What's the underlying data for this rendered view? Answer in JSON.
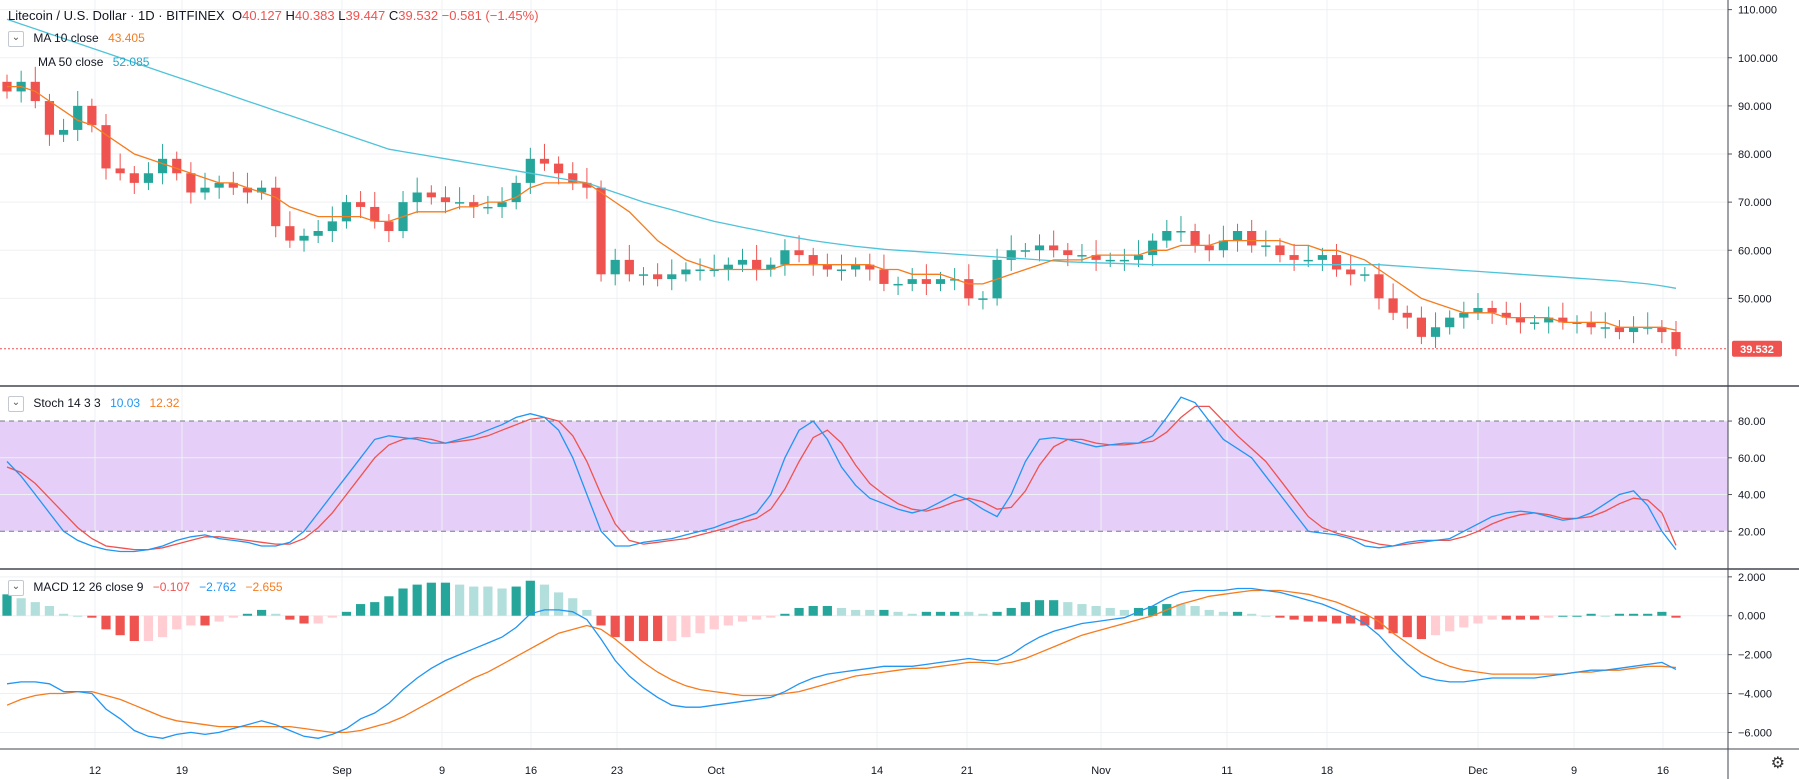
{
  "header": {
    "symbol": "Litecoin / U.S. Dollar · 1D · BITFINEX",
    "open_label": "O",
    "open": "40.127",
    "high_label": "H",
    "high": "40.383",
    "low_label": "L",
    "low": "39.447",
    "close_label": "C",
    "close": "39.532",
    "change": "−0.581 (−1.45%)"
  },
  "indicators": {
    "ma10": {
      "label": "MA 10 close",
      "value": "43.405",
      "color": "#f57c1f"
    },
    "ma50": {
      "label": "MA 50 close",
      "value": "52.085",
      "color": "#26c6da"
    },
    "stoch": {
      "label": "Stoch 14 3 3",
      "k": "10.03",
      "d": "12.32",
      "k_color": "#2196f3",
      "d_color": "#f57c1f"
    },
    "macd": {
      "label": "MACD 12 26 close 9",
      "hist": "−0.107",
      "macd": "−2.762",
      "signal": "−2.655",
      "hist_color": "#ef5350",
      "macd_color": "#2196f3",
      "signal_color": "#f57c1f"
    }
  },
  "price_tag": {
    "value": "39.532",
    "color": "#ef5350"
  },
  "colors": {
    "up": "#26a69a",
    "down": "#ef5350",
    "stoch_band": "#e1c6f7",
    "grid": "#eef0f3"
  },
  "chart_data": {
    "type": "candlestick",
    "x_ticks": [
      "12",
      "19",
      "Sep",
      "9",
      "16",
      "23",
      "Oct",
      "14",
      "21",
      "Nov",
      "11",
      "18",
      "Dec",
      "9",
      "16"
    ],
    "price_axis": {
      "ticks": [
        "110.000",
        "100.000",
        "90.000",
        "80.000",
        "70.000",
        "60.000",
        "50.000"
      ],
      "ylim": [
        32,
        112
      ]
    },
    "stoch_axis": {
      "ticks": [
        "80.00",
        "60.00",
        "40.00",
        "20.00"
      ],
      "ylim": [
        0,
        98
      ],
      "band": [
        20,
        80
      ]
    },
    "macd_axis": {
      "ticks": [
        "2.000",
        "0.000",
        "−2.000",
        "−4.000",
        "−6.000"
      ],
      "ylim": [
        -6.8,
        2.3
      ]
    },
    "close": [
      93,
      95,
      91,
      84,
      85,
      90,
      86,
      77,
      76,
      74,
      76,
      79,
      76,
      72,
      73,
      74,
      73,
      72,
      73,
      65,
      62,
      63,
      64,
      66,
      70,
      69,
      66,
      64,
      70,
      72,
      71,
      70,
      70,
      69,
      69,
      70,
      74,
      79,
      78,
      76,
      74,
      73,
      55,
      58,
      55,
      55,
      54,
      55,
      56,
      56,
      56,
      57,
      58,
      56,
      57,
      60,
      59,
      57,
      56,
      56,
      57,
      56,
      53,
      53,
      54,
      53,
      54,
      54,
      50,
      50,
      58,
      60,
      60,
      61,
      60,
      59,
      59,
      58,
      58,
      58,
      59,
      62,
      64,
      64,
      61,
      60,
      62,
      64,
      61,
      61,
      59,
      58,
      58,
      59,
      56,
      55,
      55,
      50,
      47,
      46,
      42,
      44,
      46,
      47,
      48,
      47,
      46,
      45,
      45,
      46,
      45,
      45,
      44,
      44,
      43,
      44,
      44,
      43,
      39.5
    ],
    "ma10": [
      94,
      94,
      93,
      91,
      89,
      87,
      86,
      84,
      82,
      80,
      79,
      78,
      77,
      76,
      75,
      74,
      74,
      73,
      72,
      71,
      69,
      68,
      67,
      67,
      67,
      67,
      66,
      66,
      67,
      68,
      68,
      68,
      69,
      69,
      70,
      70,
      71,
      73,
      74,
      74,
      74,
      74,
      72,
      70,
      68,
      65,
      62,
      60,
      58,
      57,
      56,
      56,
      56,
      56,
      56,
      57,
      57,
      57,
      57,
      57,
      57,
      57,
      56,
      56,
      55,
      55,
      55,
      54,
      53,
      53,
      54,
      55,
      56,
      57,
      58,
      58,
      58,
      59,
      59,
      59,
      59,
      60,
      60,
      61,
      61,
      61,
      62,
      62,
      62,
      62,
      62,
      61,
      61,
      60,
      60,
      59,
      58,
      56,
      54,
      52,
      50,
      49,
      48,
      47,
      47,
      47,
      46,
      46,
      46,
      46,
      45,
      45,
      45,
      45,
      44,
      44,
      44,
      44,
      43.4
    ],
    "ma50": [
      108,
      107,
      106,
      105,
      104,
      103,
      102,
      101,
      100,
      99,
      98,
      97,
      96,
      95,
      94,
      93,
      92,
      91,
      90,
      89,
      88,
      87,
      86,
      85,
      84,
      83,
      82,
      81,
      80.5,
      80,
      79.5,
      79,
      78.5,
      78,
      77.5,
      77,
      76.5,
      76,
      75.5,
      75,
      74.5,
      74,
      73,
      72,
      71,
      70,
      69.2,
      68.4,
      67.6,
      66.8,
      66,
      65.4,
      64.8,
      64.2,
      63.6,
      63,
      62.5,
      62,
      61.6,
      61.2,
      60.8,
      60.5,
      60.2,
      60,
      59.8,
      59.6,
      59.4,
      59.2,
      59,
      58.8,
      58.6,
      58.4,
      58.2,
      58,
      57.8,
      57.6,
      57.5,
      57.4,
      57.3,
      57.2,
      57.1,
      57,
      57,
      57,
      57,
      57,
      57,
      57,
      57,
      57,
      57,
      57,
      57,
      57,
      57,
      57,
      57,
      57,
      56.8,
      56.6,
      56.4,
      56.2,
      56,
      55.8,
      55.6,
      55.4,
      55.2,
      55,
      54.8,
      54.6,
      54.4,
      54.2,
      54,
      53.8,
      53.6,
      53.3,
      53,
      52.6,
      52.1
    ],
    "stoch_k": [
      58,
      50,
      40,
      30,
      20,
      15,
      12,
      10,
      9,
      9,
      10,
      12,
      15,
      17,
      18,
      16,
      15,
      14,
      12,
      12,
      14,
      20,
      30,
      40,
      50,
      60,
      70,
      72,
      71,
      70,
      68,
      68,
      70,
      72,
      75,
      78,
      82,
      84,
      82,
      75,
      60,
      40,
      20,
      12,
      12,
      14,
      15,
      16,
      18,
      20,
      22,
      25,
      27,
      30,
      40,
      60,
      75,
      80,
      70,
      55,
      45,
      38,
      35,
      32,
      30,
      32,
      36,
      40,
      37,
      32,
      28,
      40,
      58,
      70,
      71,
      70,
      68,
      66,
      67,
      68,
      68,
      72,
      82,
      93,
      90,
      80,
      70,
      65,
      60,
      50,
      40,
      30,
      20,
      19,
      18,
      16,
      12,
      11,
      12,
      14,
      15,
      15,
      16,
      20,
      24,
      28,
      30,
      31,
      30,
      28,
      26,
      27,
      30,
      35,
      40,
      42,
      34,
      20,
      10
    ],
    "stoch_d": [
      55,
      52,
      46,
      38,
      30,
      22,
      16,
      12,
      11,
      10,
      10,
      11,
      13,
      15,
      17,
      17,
      16,
      15,
      14,
      13,
      13,
      16,
      22,
      30,
      40,
      50,
      60,
      67,
      70,
      71,
      70,
      68,
      69,
      70,
      72,
      75,
      78,
      81,
      82,
      80,
      72,
      58,
      40,
      24,
      15,
      13,
      14,
      15,
      16,
      18,
      20,
      22,
      25,
      27,
      32,
      43,
      58,
      71,
      75,
      68,
      56,
      46,
      40,
      35,
      32,
      31,
      33,
      36,
      38,
      36,
      32,
      33,
      42,
      56,
      66,
      70,
      70,
      68,
      67,
      67,
      68,
      69,
      74,
      82,
      88,
      88,
      80,
      72,
      65,
      58,
      48,
      38,
      28,
      22,
      19,
      17,
      15,
      13,
      12,
      13,
      14,
      15,
      15,
      17,
      20,
      24,
      27,
      29,
      30,
      29,
      27,
      27,
      28,
      31,
      35,
      38,
      37,
      30,
      12.3
    ],
    "macd_line": [
      -3.5,
      -3.4,
      -3.4,
      -3.5,
      -3.9,
      -3.9,
      -4.0,
      -4.8,
      -5.3,
      -5.9,
      -6.2,
      -6.3,
      -6.1,
      -6.0,
      -6.1,
      -6.0,
      -5.8,
      -5.6,
      -5.4,
      -5.6,
      -5.9,
      -6.2,
      -6.3,
      -6.1,
      -5.8,
      -5.3,
      -5.0,
      -4.5,
      -3.8,
      -3.2,
      -2.7,
      -2.3,
      -2.0,
      -1.7,
      -1.4,
      -1.1,
      -0.6,
      0.1,
      0.3,
      0.3,
      0.2,
      -0.2,
      -1.2,
      -2.3,
      -3.1,
      -3.7,
      -4.2,
      -4.6,
      -4.7,
      -4.7,
      -4.6,
      -4.5,
      -4.4,
      -4.3,
      -4.2,
      -3.9,
      -3.5,
      -3.2,
      -3.0,
      -2.9,
      -2.8,
      -2.7,
      -2.6,
      -2.6,
      -2.6,
      -2.5,
      -2.4,
      -2.3,
      -2.2,
      -2.3,
      -2.3,
      -2.0,
      -1.5,
      -1.1,
      -0.8,
      -0.6,
      -0.4,
      -0.3,
      -0.2,
      -0.1,
      0.2,
      0.5,
      0.9,
      1.2,
      1.3,
      1.3,
      1.3,
      1.4,
      1.4,
      1.3,
      1.2,
      1.0,
      0.8,
      0.6,
      0.3,
      0.0,
      -0.4,
      -1.0,
      -1.8,
      -2.5,
      -3.1,
      -3.3,
      -3.4,
      -3.4,
      -3.3,
      -3.2,
      -3.2,
      -3.2,
      -3.2,
      -3.1,
      -3.0,
      -2.9,
      -2.8,
      -2.8,
      -2.7,
      -2.6,
      -2.5,
      -2.4,
      -2.76
    ],
    "macd_signal": [
      -4.6,
      -4.3,
      -4.1,
      -4.0,
      -4.0,
      -3.9,
      -3.9,
      -4.1,
      -4.3,
      -4.6,
      -4.9,
      -5.2,
      -5.4,
      -5.5,
      -5.6,
      -5.7,
      -5.7,
      -5.7,
      -5.7,
      -5.7,
      -5.7,
      -5.8,
      -5.9,
      -6.0,
      -6.0,
      -5.9,
      -5.7,
      -5.5,
      -5.2,
      -4.8,
      -4.4,
      -4.0,
      -3.6,
      -3.2,
      -2.9,
      -2.5,
      -2.1,
      -1.7,
      -1.3,
      -0.9,
      -0.7,
      -0.5,
      -0.7,
      -1.2,
      -1.8,
      -2.4,
      -2.9,
      -3.3,
      -3.6,
      -3.8,
      -3.9,
      -4.0,
      -4.1,
      -4.1,
      -4.1,
      -4.0,
      -3.9,
      -3.7,
      -3.5,
      -3.3,
      -3.1,
      -3.0,
      -2.9,
      -2.8,
      -2.7,
      -2.7,
      -2.6,
      -2.5,
      -2.4,
      -2.4,
      -2.5,
      -2.4,
      -2.2,
      -1.9,
      -1.6,
      -1.3,
      -1.0,
      -0.8,
      -0.6,
      -0.4,
      -0.2,
      0.0,
      0.3,
      0.6,
      0.8,
      1.0,
      1.1,
      1.2,
      1.3,
      1.3,
      1.3,
      1.2,
      1.1,
      0.9,
      0.7,
      0.4,
      0.1,
      -0.3,
      -0.9,
      -1.4,
      -1.9,
      -2.3,
      -2.6,
      -2.8,
      -2.9,
      -3.0,
      -3.0,
      -3.0,
      -3.0,
      -3.0,
      -3.0,
      -2.9,
      -2.9,
      -2.8,
      -2.8,
      -2.7,
      -2.6,
      -2.6,
      -2.66
    ]
  }
}
